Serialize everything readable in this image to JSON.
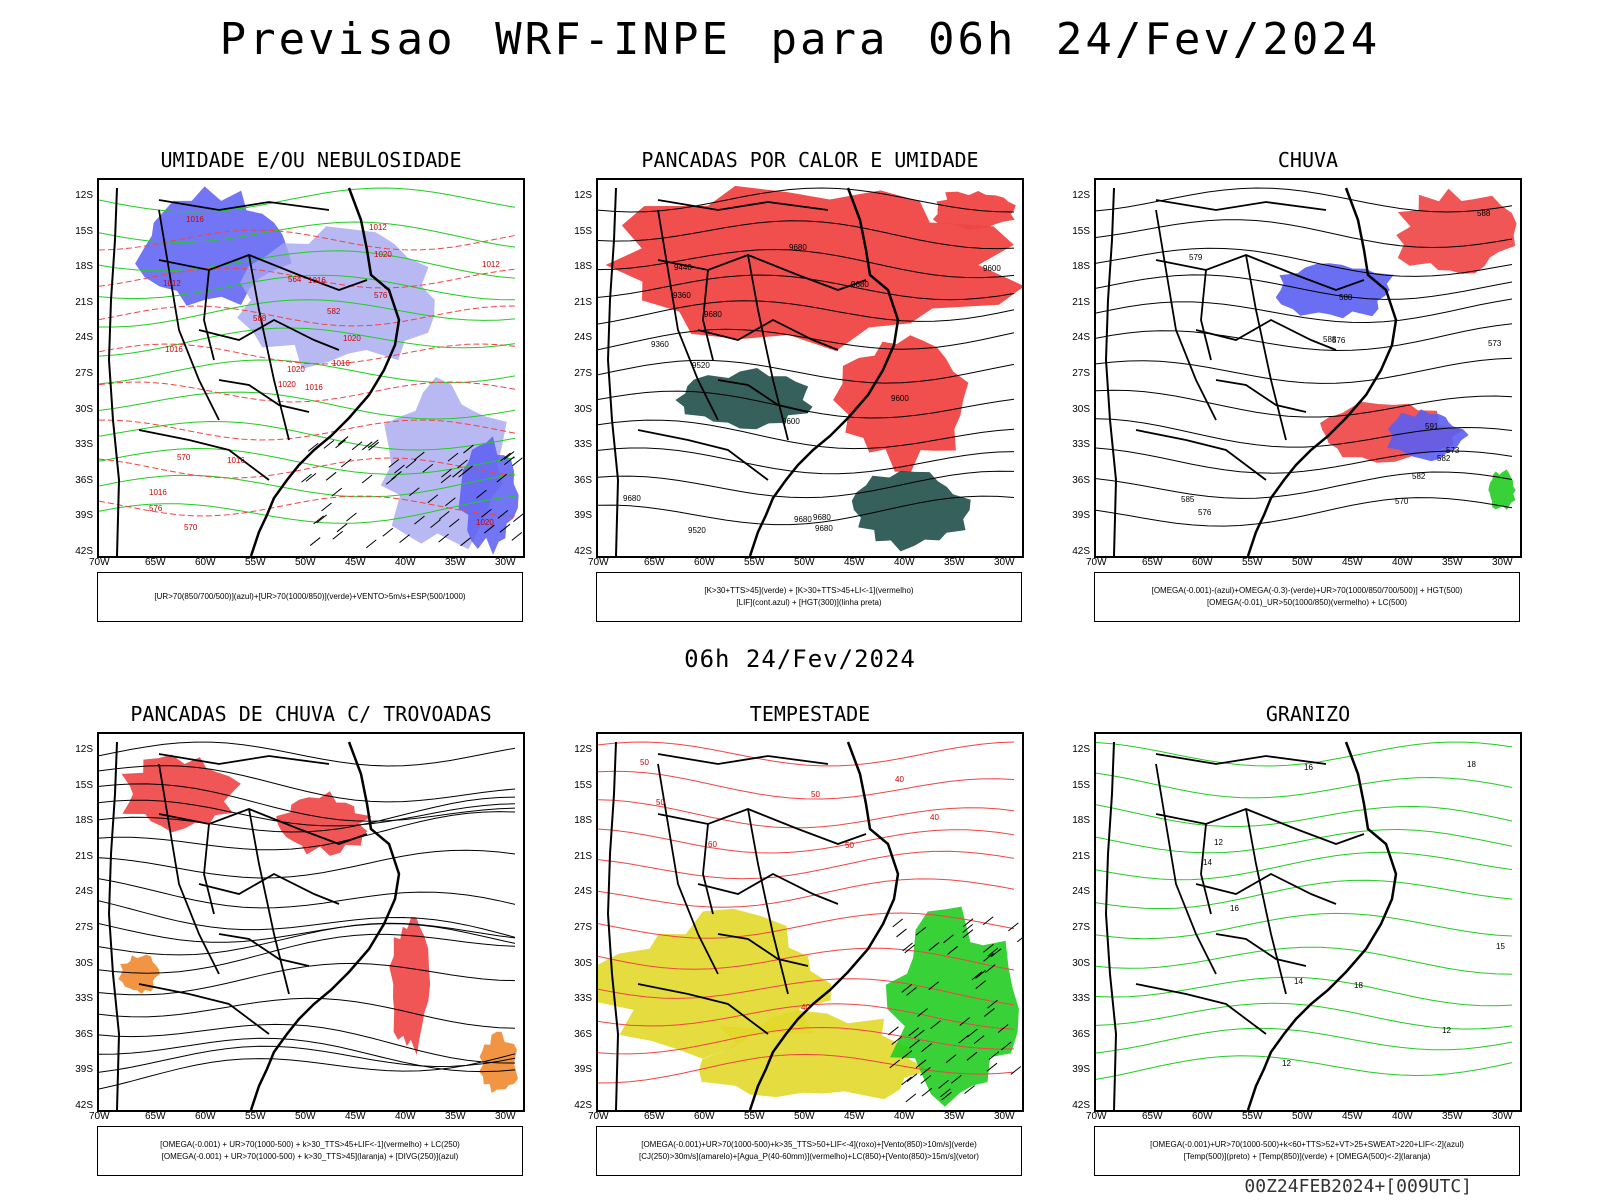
{
  "title": "Previsao WRF-INPE  para 06h 24/Fev/2024",
  "subtitle": "06h 24/Fev/2024",
  "footer": "00Z24FEB2024+[009UTC]",
  "lat_labels": [
    "12S",
    "15S",
    "18S",
    "21S",
    "24S",
    "27S",
    "30S",
    "33S",
    "36S",
    "39S",
    "42S"
  ],
  "lon_labels": [
    "70W",
    "65W",
    "60W",
    "55W",
    "50W",
    "45W",
    "40W",
    "35W",
    "30W"
  ],
  "colors": {
    "blue": "#5a5ef2",
    "lightblue": "#a6a8f0",
    "green": "#22cc22",
    "red": "#f04444",
    "darkgreen": "#1f4f4a",
    "orange": "#f08a30",
    "yellow": "#e2d82a",
    "black": "#000000"
  },
  "panels": [
    {
      "title": "UMIDADE E/OU NEBULOSIDADE",
      "legend": [
        "[UR>70(850/700/500)](azul)+[UR>70(1000/850)](verde)+VENTO>5m/s+ESP(500/1000)"
      ],
      "labels": [
        "1016",
        "1012",
        "1020",
        "1016",
        "1020",
        "1016",
        "1012",
        "1016",
        "1020",
        "1016",
        "1016",
        "1020",
        "1016",
        "1012",
        "1020",
        "576",
        "570",
        "564",
        "582",
        "570",
        "588",
        "576"
      ]
    },
    {
      "title": "PANCADAS POR CALOR E UMIDADE",
      "legend": [
        "[K>30+TTS>45](verde) + [K>30+TTS>45+LI<-1](vermelho)",
        "[LIF](cont.azul) + [HGT(300)](linha preta)"
      ],
      "labels": [
        "9680",
        "9680",
        "9680",
        "9680",
        "9600",
        "9680",
        "9680",
        "9520",
        "9600",
        "9440",
        "9520",
        "9600",
        "9680",
        "9360",
        "9360"
      ]
    },
    {
      "title": "CHUVA",
      "legend": [
        "[OMEGA(-0.001)-(azul)+OMEGA(-0.3)-(verde)+UR>70(1000/850/700/500)] + HGT(500)",
        "[OMEGA(-0.01)_UR>50(1000/850)(vermelho) + LC(500)"
      ],
      "labels": [
        "588",
        "591",
        "588",
        "588",
        "582",
        "585",
        "576",
        "573",
        "579",
        "570",
        "576",
        "573",
        "582"
      ]
    },
    {
      "title": "PANCADAS DE CHUVA C/ TROVOADAS",
      "legend": [
        "[OMEGA(-0.001) + UR>70(1000-500) + k>30_TTS>45+LIF<-1](vermelho) + LC(250)",
        "[OMEGA(-0.001) + UR>70(1000-500) + k>30_TTS>45](laranja) + [DIVG(250)](azul)"
      ],
      "labels": []
    },
    {
      "title": "TEMPESTADE",
      "legend": [
        "[OMEGA(-0.001)+UR>70(1000-500)+k>35_TTS>50+LIF<-4](roxo)+[Vento(850)>10m/s](verde)",
        "[CJ(250)>30m/s](amarelo)+[Agua_P(40-60mm)](vermelho)+LC(850)+[Vento(850)>15m/s](vetor)"
      ],
      "labels": [
        "50",
        "50",
        "40",
        "40",
        "50",
        "50",
        "40",
        "60"
      ]
    },
    {
      "title": "GRANIZO",
      "legend": [
        "[OMEGA(-0.001)+UR>70(1000-500)+k<60+TTS>52+VT>25+SWEAT>220+LIF<-2](azul)",
        "[Temp(500)](preto) + [Temp(850)](verde) + [OMEGA(500)<-2](laranja)"
      ],
      "labels": [
        "18",
        "12",
        "16",
        "12",
        "14",
        "15",
        "12",
        "18",
        "14",
        "16"
      ]
    }
  ]
}
